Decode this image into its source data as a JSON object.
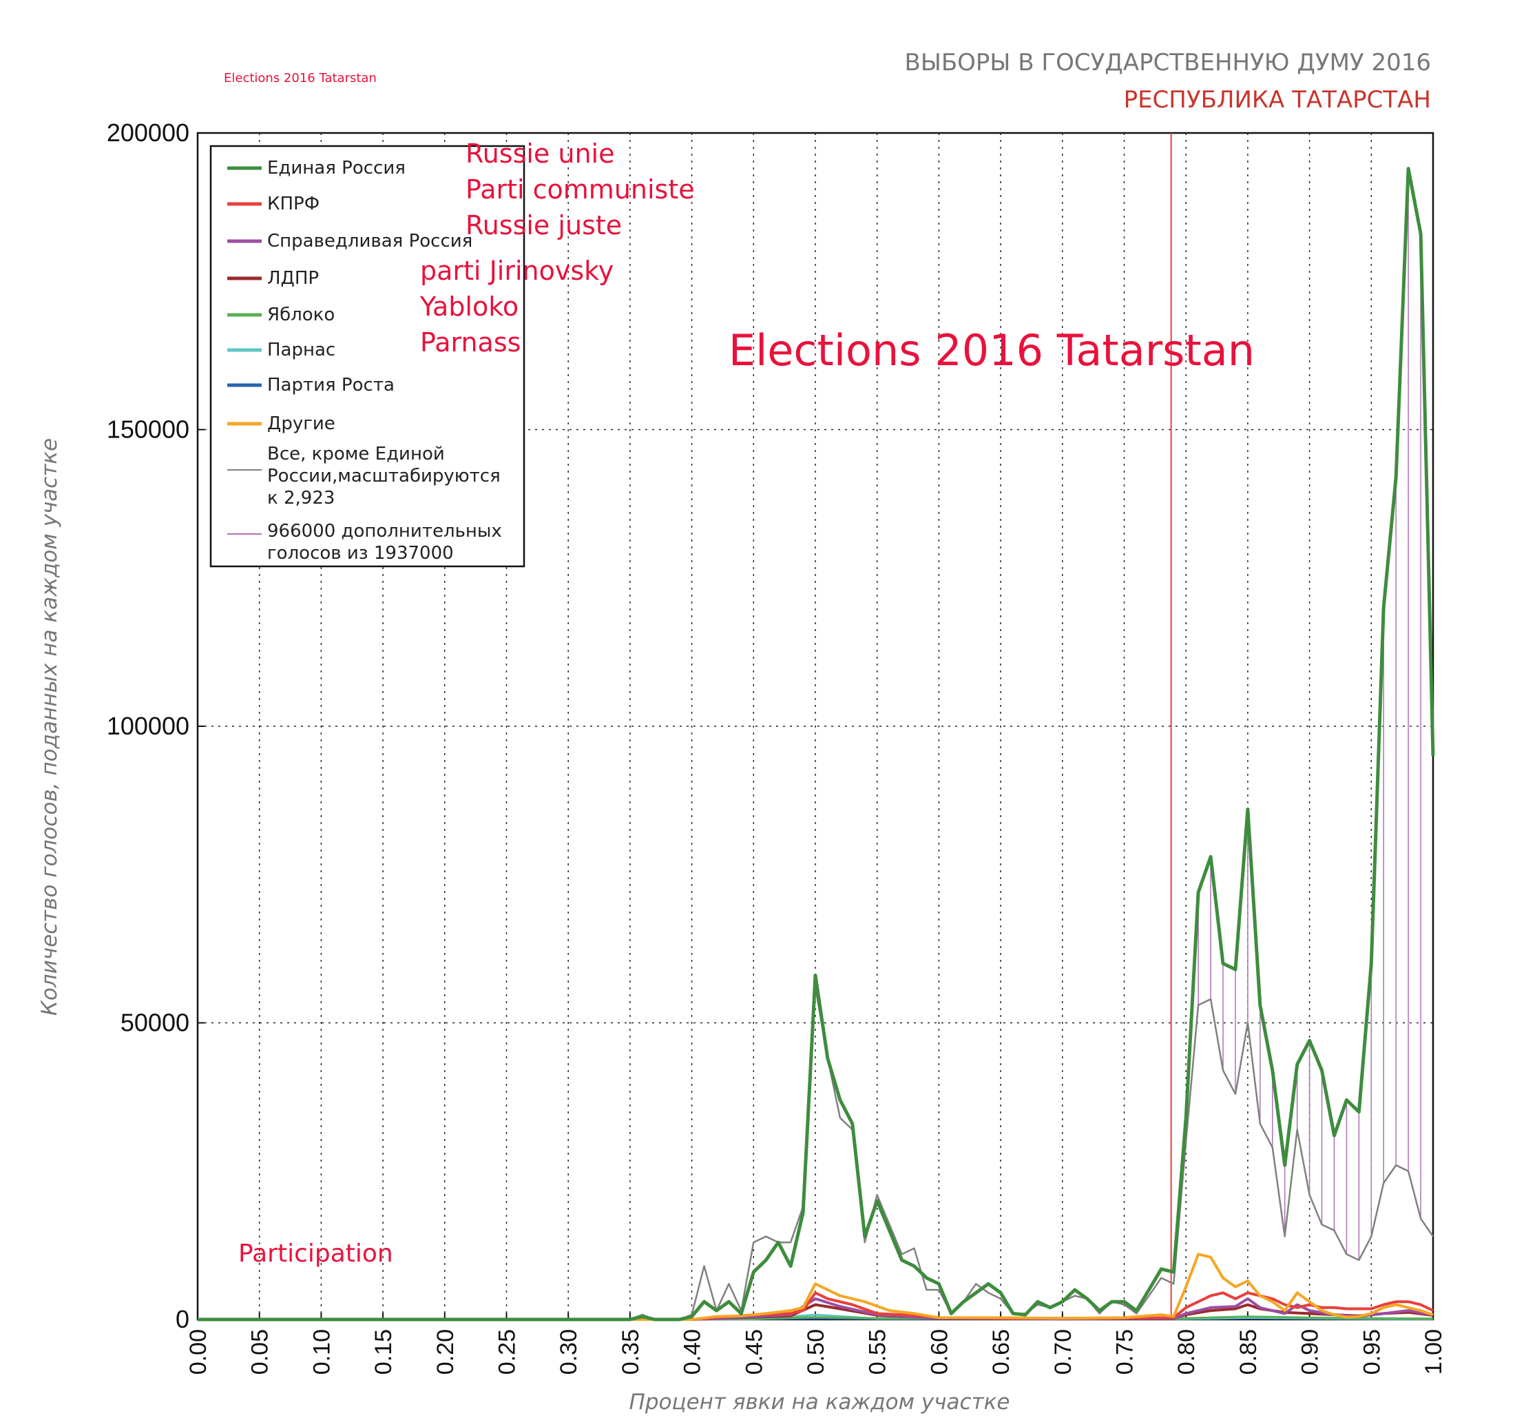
{
  "header": {
    "title": "ВЫБОРЫ В ГОСУДАРСТВЕННУЮ ДУМУ 2016",
    "subtitle": "РЕСПУБЛИКА ТАТАРСТАН",
    "small_caption": "Elections 2016 Tatarstan"
  },
  "annotations": {
    "big_title": "Elections 2016 Tatarstan",
    "participation": "Participation",
    "party_translations": [
      "Russie unie",
      "Parti communiste",
      "Russie juste",
      "parti Jirinovsky",
      "Yabloko",
      "Parnass"
    ]
  },
  "legend": {
    "items": [
      {
        "label": "Единая Россия",
        "color": "#3e8c3e"
      },
      {
        "label": "КПРФ",
        "color": "#e8403c"
      },
      {
        "label": "Справедливая Россия",
        "color": "#9b4ea3"
      },
      {
        "label": "ЛДПР",
        "color": "#9b2b2b"
      },
      {
        "label": "Яблоко",
        "color": "#5aaf55"
      },
      {
        "label": "Парнас",
        "color": "#5fc6c4"
      },
      {
        "label": "Партия Роста",
        "color": "#2a64b0"
      },
      {
        "label": "Другие",
        "color": "#f5a623"
      }
    ],
    "gray_label_lines": [
      "Все, кроме Единой",
      "России,масштабируются",
      "к 2,923"
    ],
    "purple_label_lines": [
      "966000 дополнительных",
      "голосов из 1937000"
    ]
  },
  "chart_data": {
    "type": "line",
    "title": "ВЫБОРЫ В ГОСУДАРСТВЕННУЮ ДУМУ 2016 — РЕСПУБЛИКА ТАТАРСТАН",
    "xlabel": "Процент явки на каждом участке",
    "ylabel": "Количество голосов, поданных на каждом участке",
    "xlim": [
      0,
      1
    ],
    "ylim": [
      0,
      200000
    ],
    "x_ticks": [
      "0.00",
      "0.05",
      "0.10",
      "0.15",
      "0.20",
      "0.25",
      "0.30",
      "0.35",
      "0.40",
      "0.45",
      "0.50",
      "0.55",
      "0.60",
      "0.65",
      "0.70",
      "0.75",
      "0.80",
      "0.85",
      "0.90",
      "0.95",
      "1.00"
    ],
    "y_ticks": [
      "0",
      "50000",
      "100000",
      "150000",
      "200000"
    ],
    "grid": true,
    "vline_x": 0.788,
    "vline_color": "#e8403c",
    "series": [
      {
        "name": "Единая Россия",
        "color": "#3e8c3e",
        "width": 5,
        "x": [
          0,
          0.35,
          0.36,
          0.37,
          0.39,
          0.4,
          0.41,
          0.42,
          0.43,
          0.44,
          0.45,
          0.46,
          0.47,
          0.48,
          0.49,
          0.5,
          0.51,
          0.52,
          0.53,
          0.54,
          0.55,
          0.56,
          0.57,
          0.58,
          0.59,
          0.6,
          0.61,
          0.62,
          0.63,
          0.64,
          0.65,
          0.66,
          0.67,
          0.68,
          0.69,
          0.7,
          0.71,
          0.72,
          0.73,
          0.74,
          0.75,
          0.76,
          0.77,
          0.78,
          0.79,
          0.8,
          0.81,
          0.82,
          0.83,
          0.84,
          0.85,
          0.86,
          0.87,
          0.88,
          0.89,
          0.9,
          0.91,
          0.92,
          0.93,
          0.94,
          0.95,
          0.96,
          0.97,
          0.98,
          0.99,
          1.0
        ],
        "y": [
          0,
          0,
          500,
          0,
          0,
          500,
          3000,
          1500,
          3000,
          1000,
          8000,
          10000,
          13000,
          9000,
          18000,
          58000,
          44000,
          37000,
          33000,
          14000,
          20000,
          15000,
          10000,
          9000,
          7000,
          6000,
          1000,
          3000,
          4500,
          6000,
          4500,
          1000,
          800,
          3000,
          2000,
          3000,
          5000,
          3500,
          1500,
          3000,
          3000,
          1500,
          5000,
          8500,
          8000,
          34000,
          72000,
          78000,
          60000,
          59000,
          86000,
          53000,
          42000,
          26000,
          43000,
          47000,
          42000,
          31000,
          37000,
          35000,
          60000,
          120000,
          142000,
          194000,
          183000,
          95000
        ]
      },
      {
        "name": "Все, кроме Единой России (×2.923)",
        "color": "#808080",
        "width": 2.5,
        "x": [
          0,
          0.35,
          0.36,
          0.37,
          0.39,
          0.4,
          0.41,
          0.42,
          0.43,
          0.44,
          0.45,
          0.46,
          0.47,
          0.48,
          0.49,
          0.5,
          0.51,
          0.52,
          0.53,
          0.54,
          0.55,
          0.56,
          0.57,
          0.58,
          0.59,
          0.6,
          0.61,
          0.62,
          0.63,
          0.64,
          0.65,
          0.66,
          0.67,
          0.68,
          0.69,
          0.7,
          0.71,
          0.72,
          0.73,
          0.74,
          0.75,
          0.76,
          0.77,
          0.78,
          0.79,
          0.8,
          0.81,
          0.82,
          0.83,
          0.84,
          0.85,
          0.86,
          0.87,
          0.88,
          0.89,
          0.9,
          0.91,
          0.92,
          0.93,
          0.94,
          0.95,
          0.96,
          0.97,
          0.98,
          0.99,
          1.0
        ],
        "y": [
          0,
          0,
          800,
          0,
          0,
          800,
          9000,
          1500,
          6000,
          1500,
          13000,
          14000,
          13000,
          13000,
          19000,
          56000,
          44000,
          34000,
          32000,
          13000,
          21000,
          16000,
          11000,
          12000,
          5000,
          5000,
          1000,
          3000,
          6000,
          4500,
          3500,
          1000,
          1000,
          2500,
          2000,
          3000,
          4000,
          3500,
          1000,
          3000,
          2500,
          1000,
          4000,
          7000,
          6000,
          30000,
          53000,
          54000,
          42000,
          38000,
          50000,
          33000,
          29000,
          14000,
          32000,
          21000,
          16000,
          15000,
          11000,
          10000,
          14000,
          23000,
          26000,
          25000,
          17000,
          14000
        ]
      },
      {
        "name": "Другие",
        "color": "#f5a623",
        "width": 4,
        "x": [
          0,
          0.4,
          0.42,
          0.44,
          0.46,
          0.48,
          0.49,
          0.5,
          0.52,
          0.54,
          0.56,
          0.58,
          0.6,
          0.65,
          0.7,
          0.75,
          0.78,
          0.79,
          0.8,
          0.81,
          0.82,
          0.83,
          0.84,
          0.85,
          0.86,
          0.87,
          0.88,
          0.89,
          0.9,
          0.91,
          0.92,
          0.93,
          0.94,
          0.95,
          0.96,
          0.97,
          0.98,
          0.99,
          1.0
        ],
        "y": [
          0,
          0,
          500,
          600,
          1000,
          1500,
          2000,
          6000,
          4000,
          3000,
          1500,
          1000,
          300,
          300,
          200,
          300,
          800,
          500,
          5500,
          11000,
          10500,
          7000,
          5500,
          6500,
          4000,
          3000,
          1500,
          4500,
          3000,
          1500,
          800,
          400,
          500,
          1000,
          2000,
          2500,
          2000,
          1500,
          800
        ]
      },
      {
        "name": "КПРФ",
        "color": "#e8403c",
        "width": 4,
        "x": [
          0,
          0.4,
          0.45,
          0.48,
          0.49,
          0.5,
          0.51,
          0.53,
          0.55,
          0.58,
          0.6,
          0.65,
          0.7,
          0.75,
          0.79,
          0.8,
          0.81,
          0.82,
          0.83,
          0.84,
          0.85,
          0.86,
          0.87,
          0.88,
          0.89,
          0.9,
          0.91,
          0.92,
          0.93,
          0.94,
          0.95,
          0.96,
          0.97,
          0.98,
          0.99,
          1.0
        ],
        "y": [
          0,
          0,
          800,
          1000,
          1500,
          4500,
          3500,
          2500,
          1000,
          700,
          300,
          200,
          200,
          200,
          300,
          2000,
          3000,
          4000,
          4500,
          3500,
          4500,
          4000,
          3500,
          2500,
          2000,
          2500,
          2000,
          2000,
          1800,
          1800,
          1800,
          2500,
          3000,
          3000,
          2500,
          1500
        ]
      },
      {
        "name": "Справедливая Россия",
        "color": "#9b4ea3",
        "width": 4,
        "x": [
          0,
          0.4,
          0.45,
          0.48,
          0.5,
          0.52,
          0.55,
          0.6,
          0.7,
          0.79,
          0.8,
          0.82,
          0.84,
          0.85,
          0.86,
          0.88,
          0.89,
          0.9,
          0.92,
          0.94,
          0.96,
          0.98,
          1.0
        ],
        "y": [
          0,
          0,
          500,
          800,
          3500,
          2200,
          800,
          200,
          100,
          200,
          1000,
          2000,
          2200,
          3500,
          2000,
          1000,
          2500,
          1500,
          800,
          500,
          1000,
          1500,
          800
        ]
      },
      {
        "name": "ЛДПР",
        "color": "#9b2b2b",
        "width": 4,
        "x": [
          0,
          0.4,
          0.45,
          0.48,
          0.5,
          0.52,
          0.55,
          0.6,
          0.7,
          0.79,
          0.8,
          0.82,
          0.84,
          0.85,
          0.86,
          0.88,
          0.9,
          0.92,
          0.94,
          0.96,
          0.98,
          1.0
        ],
        "y": [
          0,
          0,
          400,
          600,
          2500,
          1800,
          700,
          200,
          100,
          200,
          800,
          1500,
          1800,
          2500,
          1800,
          1200,
          1000,
          800,
          600,
          1000,
          1200,
          700
        ]
      },
      {
        "name": "Яблоко",
        "color": "#5aaf55",
        "width": 3,
        "x": [
          0,
          0.45,
          0.5,
          0.55,
          0.8,
          0.85,
          0.9,
          0.95,
          1.0
        ],
        "y": [
          0,
          100,
          400,
          200,
          200,
          500,
          300,
          200,
          150
        ]
      },
      {
        "name": "Парнас",
        "color": "#5fc6c4",
        "width": 3,
        "x": [
          0,
          0.45,
          0.5,
          0.55,
          0.8,
          0.85,
          0.9,
          0.95,
          1.0
        ],
        "y": [
          0,
          50,
          800,
          150,
          100,
          300,
          200,
          100,
          80
        ]
      },
      {
        "name": "Партия Роста",
        "color": "#2a64b0",
        "width": 3,
        "x": [
          0,
          0.45,
          0.5,
          0.55,
          0.8,
          0.85,
          0.9,
          0.95,
          1.0
        ],
        "y": [
          0,
          50,
          200,
          100,
          100,
          200,
          150,
          100,
          80
        ]
      }
    ]
  }
}
